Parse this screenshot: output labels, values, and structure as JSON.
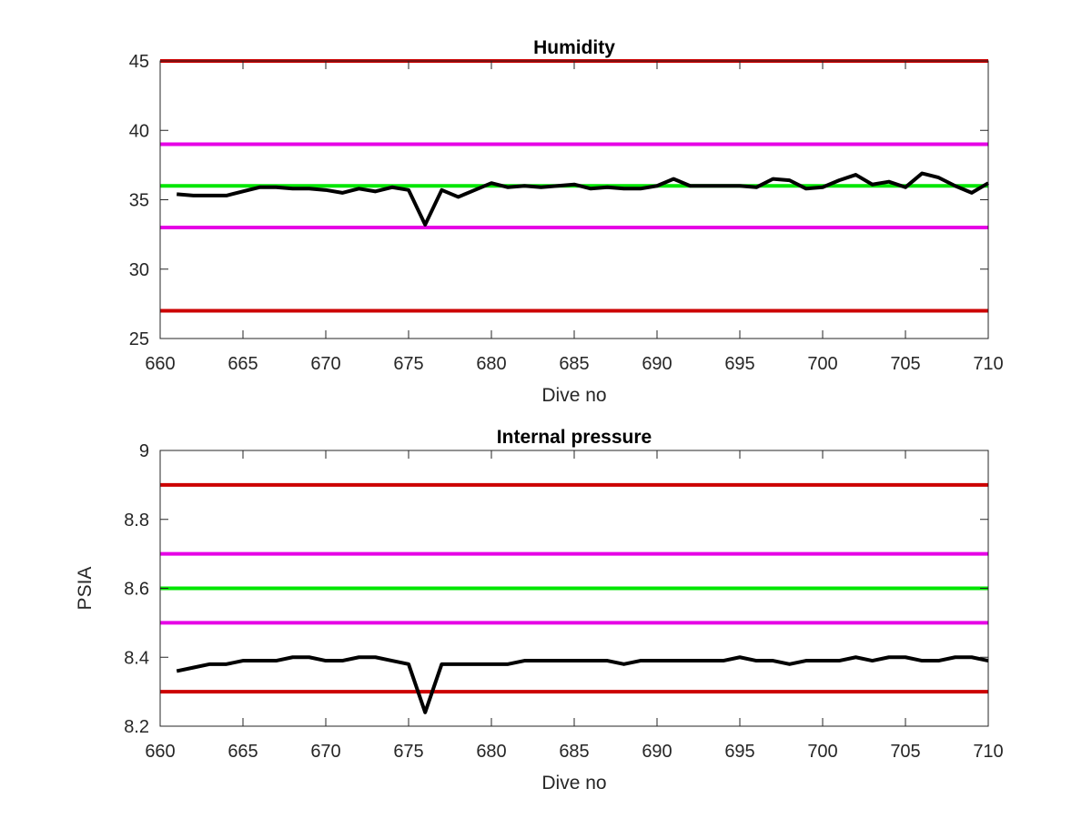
{
  "chart_data": [
    {
      "type": "line",
      "title": "Humidity",
      "xlabel": "Dive no",
      "ylabel": "",
      "xlim": [
        660,
        710
      ],
      "ylim": [
        25,
        45
      ],
      "xticks": [
        660,
        665,
        670,
        675,
        680,
        685,
        690,
        695,
        700,
        705,
        710
      ],
      "yticks": [
        25,
        30,
        35,
        40,
        45
      ],
      "grid": false,
      "reference_lines": [
        {
          "y": 45,
          "color": "#cc0000"
        },
        {
          "y": 39,
          "color": "#e600e6"
        },
        {
          "y": 36,
          "color": "#00e600"
        },
        {
          "y": 33,
          "color": "#e600e6"
        },
        {
          "y": 27,
          "color": "#cc0000"
        }
      ],
      "series": [
        {
          "color": "#000000",
          "x": [
            661,
            662,
            663,
            664,
            665,
            666,
            667,
            668,
            669,
            670,
            671,
            672,
            673,
            674,
            675,
            676,
            677,
            678,
            679,
            680,
            681,
            682,
            683,
            684,
            685,
            686,
            687,
            688,
            689,
            690,
            691,
            692,
            693,
            694,
            695,
            696,
            697,
            698,
            699,
            700,
            701,
            702,
            703,
            704,
            705,
            706,
            707,
            708,
            709,
            710
          ],
          "y": [
            35.4,
            35.3,
            35.3,
            35.3,
            35.6,
            35.9,
            35.9,
            35.8,
            35.8,
            35.7,
            35.5,
            35.8,
            35.6,
            35.9,
            35.7,
            33.2,
            35.7,
            35.2,
            35.7,
            36.2,
            35.9,
            36.0,
            35.9,
            36.0,
            36.1,
            35.8,
            35.9,
            35.8,
            35.8,
            36.0,
            36.5,
            36.0,
            36.0,
            36.0,
            36.0,
            35.9,
            36.5,
            36.4,
            35.8,
            35.9,
            36.4,
            36.8,
            36.1,
            36.3,
            35.9,
            36.9,
            36.6,
            36.0,
            35.5,
            36.2
          ]
        }
      ]
    },
    {
      "type": "line",
      "title": "Internal pressure",
      "xlabel": "Dive no",
      "ylabel": "PSIA",
      "xlim": [
        660,
        710
      ],
      "ylim": [
        8.2,
        9
      ],
      "xticks": [
        660,
        665,
        670,
        675,
        680,
        685,
        690,
        695,
        700,
        705,
        710
      ],
      "yticks": [
        8.2,
        8.4,
        8.6,
        8.8,
        9
      ],
      "grid": false,
      "reference_lines": [
        {
          "y": 8.9,
          "color": "#cc0000"
        },
        {
          "y": 8.7,
          "color": "#e600e6"
        },
        {
          "y": 8.6,
          "color": "#00e600"
        },
        {
          "y": 8.5,
          "color": "#e600e6"
        },
        {
          "y": 8.3,
          "color": "#cc0000"
        }
      ],
      "series": [
        {
          "color": "#000000",
          "x": [
            661,
            662,
            663,
            664,
            665,
            666,
            667,
            668,
            669,
            670,
            671,
            672,
            673,
            674,
            675,
            676,
            677,
            678,
            679,
            680,
            681,
            682,
            683,
            684,
            685,
            686,
            687,
            688,
            689,
            690,
            691,
            692,
            693,
            694,
            695,
            696,
            697,
            698,
            699,
            700,
            701,
            702,
            703,
            704,
            705,
            706,
            707,
            708,
            709,
            710
          ],
          "y": [
            8.36,
            8.37,
            8.38,
            8.38,
            8.39,
            8.39,
            8.39,
            8.4,
            8.4,
            8.39,
            8.39,
            8.4,
            8.4,
            8.39,
            8.38,
            8.24,
            8.38,
            8.38,
            8.38,
            8.38,
            8.38,
            8.39,
            8.39,
            8.39,
            8.39,
            8.39,
            8.39,
            8.38,
            8.39,
            8.39,
            8.39,
            8.39,
            8.39,
            8.39,
            8.4,
            8.39,
            8.39,
            8.38,
            8.39,
            8.39,
            8.39,
            8.4,
            8.39,
            8.4,
            8.4,
            8.39,
            8.39,
            8.4,
            8.4,
            8.39
          ]
        }
      ]
    }
  ]
}
